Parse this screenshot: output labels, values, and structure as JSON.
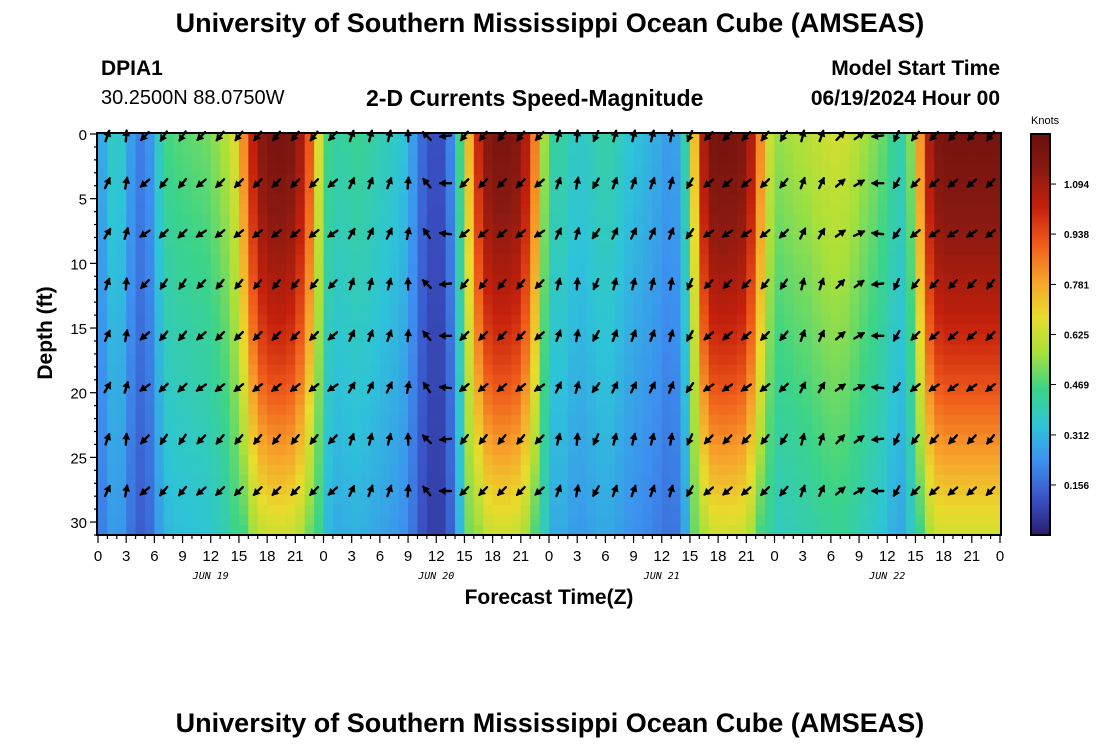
{
  "header": {
    "title_top": "University of Southern Mississippi Ocean Cube (AMSEAS)",
    "title_bottom": "University of Southern Mississippi Ocean Cube (AMSEAS)",
    "station_id": "DPIA1",
    "station_coords": "30.2500N  88.0750W",
    "product": "2-D Currents Speed-Magnitude",
    "model_start_label": "Model Start Time",
    "model_start_value": "06/19/2024 Hour 00"
  },
  "colors": {
    "ramp": [
      "#2a1d6e",
      "#3a52c6",
      "#3d8ff0",
      "#2ec4d8",
      "#3bd488",
      "#a9e03a",
      "#e8dc2c",
      "#f7a12a",
      "#ef5a1a",
      "#c4200c",
      "#8a1a10",
      "#6a0f0f"
    ],
    "arrow": "#000000"
  },
  "chart_data": {
    "type": "heatmap",
    "title": "2-D Currents Speed-Magnitude",
    "xlabel": "Forecast Time(Z)",
    "ylabel": "Depth (ft)",
    "x_range": [
      0,
      96
    ],
    "y_range": [
      0,
      31
    ],
    "x_tick_labels": [
      "0",
      "3",
      "6",
      "9",
      "12",
      "15",
      "18",
      "21",
      "0",
      "3",
      "6",
      "9",
      "12",
      "15",
      "18",
      "21",
      "0",
      "3",
      "6",
      "9",
      "12",
      "15",
      "18",
      "21",
      "0",
      "3",
      "6",
      "9",
      "12",
      "15",
      "18",
      "21",
      "0"
    ],
    "y_tick_labels": [
      "0",
      "5",
      "10",
      "15",
      "20",
      "25",
      "30"
    ],
    "y_tick_values": [
      0,
      5,
      10,
      15,
      20,
      25,
      30
    ],
    "date_labels": [
      "JUN 19",
      "JUN 20",
      "JUN 21",
      "JUN 22"
    ],
    "date_hours": [
      12,
      36,
      60,
      84
    ],
    "colorbar": {
      "unit": "Knots",
      "ticks": [
        "1.094",
        "0.938",
        "0.781",
        "0.625",
        "0.469",
        "0.312",
        "0.156"
      ],
      "tick_values": [
        1.094,
        0.938,
        0.781,
        0.625,
        0.469,
        0.312,
        0.156
      ],
      "range": [
        0,
        1.25
      ]
    },
    "arrow_depths_ft": [
      0,
      3.8,
      7.7,
      11.6,
      15.6,
      19.6,
      23.6,
      27.6
    ],
    "surface_speed_by_hour": [
      0.26,
      0.32,
      0.42,
      0.3,
      0.22,
      0.18,
      0.3,
      0.45,
      0.48,
      0.48,
      0.5,
      0.5,
      0.52,
      0.56,
      0.6,
      0.72,
      0.94,
      1.12,
      1.18,
      1.2,
      1.19,
      1.16,
      1.02,
      0.82,
      0.5,
      0.42,
      0.42,
      0.44,
      0.44,
      0.42,
      0.4,
      0.38,
      0.36,
      0.32,
      0.2,
      0.12,
      0.1,
      0.12,
      0.3,
      0.62,
      0.9,
      1.12,
      1.18,
      1.19,
      1.18,
      1.14,
      0.98,
      0.72,
      0.4,
      0.44,
      0.4,
      0.36,
      0.38,
      0.4,
      0.42,
      0.4,
      0.36,
      0.34,
      0.32,
      0.3,
      0.28,
      0.24,
      0.3,
      0.52,
      0.96,
      1.18,
      1.2,
      1.2,
      1.19,
      1.16,
      0.96,
      0.7,
      0.55,
      0.55,
      0.58,
      0.58,
      0.6,
      0.62,
      0.64,
      0.64,
      0.62,
      0.58,
      0.55,
      0.52,
      0.48,
      0.4,
      0.42,
      0.64,
      0.98,
      1.16,
      1.2,
      1.2,
      1.2,
      1.2,
      1.2,
      1.2,
      1.2
    ],
    "surface_direction_deg_by_hour": [
      20,
      25,
      15,
      10,
      -135,
      -130,
      -135,
      -140,
      -140,
      -140,
      -135,
      -130,
      -140,
      -135,
      -135,
      -135,
      -135,
      -135,
      -135,
      -135,
      -140,
      -135,
      -130,
      -135,
      -130,
      -130,
      20,
      25,
      25,
      20,
      20,
      20,
      15,
      5,
      -30,
      -40,
      -80,
      -90,
      -90,
      -135,
      -135,
      -135,
      -135,
      -135,
      -135,
      -135,
      -135,
      -130,
      -120,
      20,
      10,
      10,
      -30,
      -150,
      15,
      20,
      20,
      20,
      20,
      20,
      20,
      15,
      -30,
      -150,
      -140,
      -130,
      -130,
      -130,
      -130,
      -130,
      -135,
      -135,
      -135,
      -140,
      -140,
      20,
      20,
      25,
      25,
      50,
      60,
      60,
      65,
      -90,
      -130,
      -150,
      -150,
      -135,
      -130,
      -130,
      -130,
      -130,
      -130,
      -130,
      -135,
      -135,
      -140
    ]
  }
}
